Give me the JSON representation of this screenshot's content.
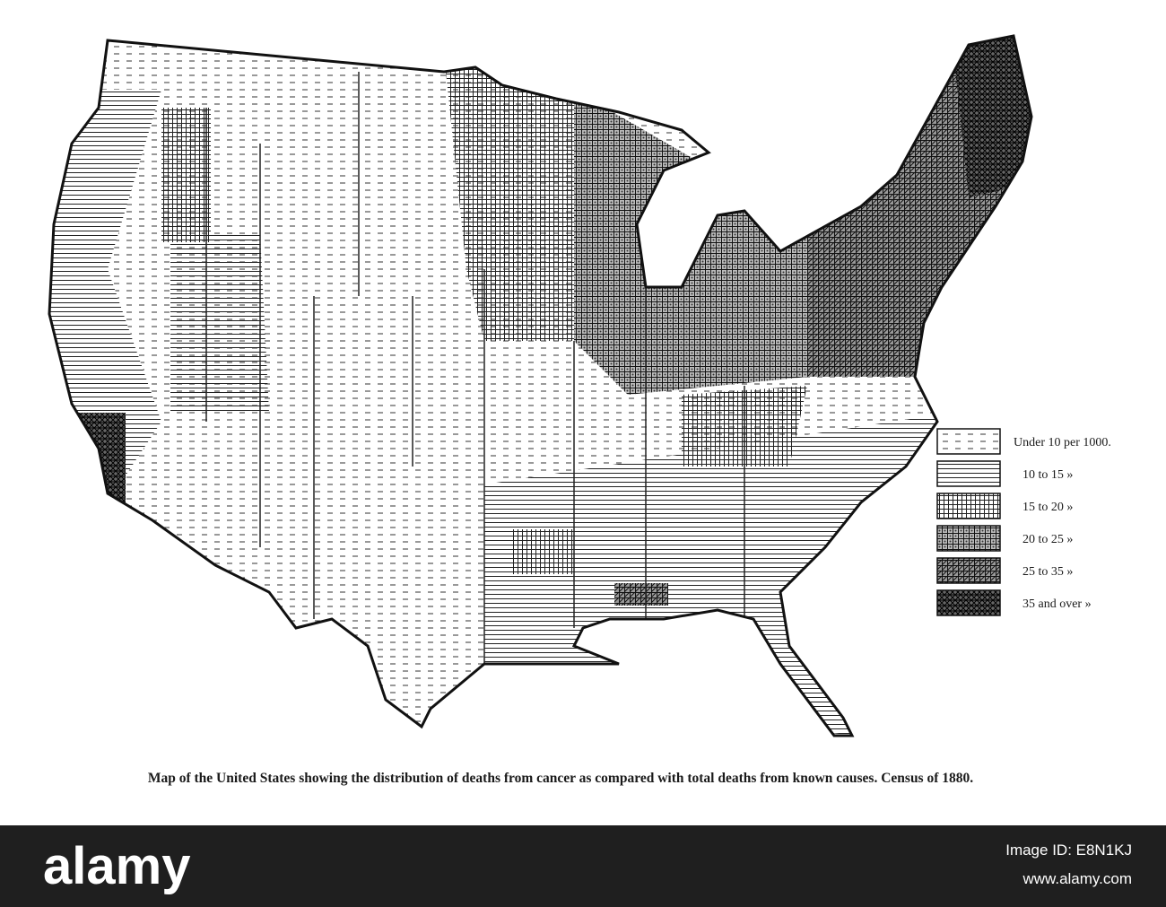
{
  "legend": {
    "items": [
      "Under 10 per 1000.",
      "10 to 15 »",
      "15 to 20 »",
      "20 to 25 »",
      "25 to 35 »",
      "35 and over »"
    ]
  },
  "caption": "Map of the United States showing the distribution of deaths from cancer as compared with total deaths from known causes.   Census of 1880.",
  "watermark": {
    "logo": "alamy",
    "image_id": "Image ID: E8N1KJ",
    "url": "www.alamy.com"
  }
}
